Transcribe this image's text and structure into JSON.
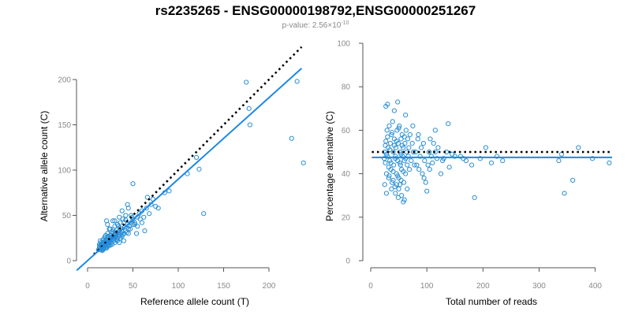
{
  "title": "rs2235265 - ENSG00000198792,ENSG00000251267",
  "subtitle": {
    "prefix": "p-value: 2.56×10",
    "exponent": "-10"
  },
  "colors": {
    "points": "#2a8fd4",
    "fit": "#1e88e5",
    "reference": "#000000"
  },
  "chart_data": [
    {
      "type": "scatter",
      "name": "allele-counts",
      "xlabel": "Reference allele count (T)",
      "ylabel": "Alternative allele count (C)",
      "xlim": [
        0,
        240
      ],
      "ylim": [
        0,
        240
      ],
      "xticks": [
        0,
        50,
        100,
        150,
        200
      ],
      "yticks": [
        0,
        50,
        100,
        150,
        200
      ],
      "reference_line": {
        "style": "dotted",
        "slope": 1.0,
        "intercept": 0
      },
      "fit_line": {
        "style": "solid",
        "slope": 0.9,
        "intercept": 0
      },
      "points": [
        [
          14,
          14
        ],
        [
          15,
          12
        ],
        [
          16,
          15
        ],
        [
          17,
          13
        ],
        [
          18,
          16
        ],
        [
          15,
          18
        ],
        [
          16,
          14
        ],
        [
          18,
          18
        ],
        [
          19,
          15
        ],
        [
          20,
          17
        ],
        [
          17,
          20
        ],
        [
          19,
          19
        ],
        [
          21,
          16
        ],
        [
          22,
          18
        ],
        [
          20,
          22
        ],
        [
          17,
          12
        ],
        [
          15,
          16
        ],
        [
          16,
          19
        ],
        [
          18,
          13
        ],
        [
          21,
          20
        ],
        [
          23,
          16
        ],
        [
          22,
          22
        ],
        [
          24,
          18
        ],
        [
          20,
          14
        ],
        [
          19,
          21
        ],
        [
          16,
          11
        ],
        [
          14,
          17
        ],
        [
          22,
          20
        ],
        [
          25,
          17
        ],
        [
          23,
          21
        ],
        [
          17,
          17
        ],
        [
          19,
          17
        ],
        [
          21,
          14
        ],
        [
          13,
          15
        ],
        [
          15,
          14
        ],
        [
          18,
          20
        ],
        [
          20,
          19
        ],
        [
          12,
          12
        ],
        [
          24,
          22
        ],
        [
          16,
          17
        ],
        [
          25,
          25
        ],
        [
          24,
          20
        ],
        [
          26,
          22
        ],
        [
          28,
          24
        ],
        [
          30,
          20
        ],
        [
          22,
          26
        ],
        [
          27,
          18
        ],
        [
          29,
          26
        ],
        [
          31,
          23
        ],
        [
          33,
          25
        ],
        [
          26,
          28
        ],
        [
          32,
          28
        ],
        [
          35,
          27
        ],
        [
          28,
          30
        ],
        [
          30,
          26
        ],
        [
          34,
          31
        ],
        [
          36,
          25
        ],
        [
          25,
          28
        ],
        [
          38,
          27
        ],
        [
          29,
          22
        ],
        [
          33,
          22
        ],
        [
          37,
          30
        ],
        [
          27,
          32
        ],
        [
          31,
          29
        ],
        [
          35,
          33
        ],
        [
          24,
          24
        ],
        [
          39,
          29
        ],
        [
          26,
          20
        ],
        [
          40,
          30
        ],
        [
          30,
          32
        ],
        [
          32,
          34
        ],
        [
          42,
          33
        ],
        [
          36,
          36
        ],
        [
          28,
          34
        ],
        [
          45,
          35
        ],
        [
          38,
          32
        ],
        [
          41,
          37
        ],
        [
          34,
          38
        ],
        [
          43,
          31
        ],
        [
          30,
          28
        ],
        [
          46,
          38
        ],
        [
          48,
          42
        ],
        [
          44,
          40
        ],
        [
          50,
          45
        ],
        [
          47,
          35
        ],
        [
          42,
          45
        ],
        [
          49,
          48
        ],
        [
          52,
          40
        ],
        [
          40,
          42
        ],
        [
          45,
          30
        ],
        [
          20,
          23
        ],
        [
          23,
          27
        ],
        [
          27,
          26
        ],
        [
          25,
          35
        ],
        [
          22,
          30
        ],
        [
          33,
          40
        ],
        [
          30,
          38
        ],
        [
          28,
          44
        ],
        [
          36,
          42
        ],
        [
          39,
          46
        ],
        [
          48,
          50
        ],
        [
          55,
          48
        ],
        [
          52,
          42
        ],
        [
          57,
          52
        ],
        [
          60,
          55
        ],
        [
          54,
          30
        ],
        [
          63,
          33
        ],
        [
          62,
          48
        ],
        [
          65,
          58
        ],
        [
          70,
          62
        ],
        [
          68,
          52
        ],
        [
          75,
          60
        ],
        [
          78,
          58
        ],
        [
          85,
          75
        ],
        [
          90,
          77
        ],
        [
          72,
          68
        ],
        [
          66,
          70
        ],
        [
          58,
          46
        ],
        [
          50,
          85
        ],
        [
          44,
          62
        ],
        [
          24,
          35
        ],
        [
          20,
          28
        ],
        [
          18,
          24
        ],
        [
          35,
          48
        ],
        [
          30,
          44
        ],
        [
          38,
          55
        ],
        [
          22,
          40
        ],
        [
          21,
          44
        ],
        [
          42,
          50
        ],
        [
          45,
          58
        ],
        [
          15,
          20
        ],
        [
          14,
          22
        ],
        [
          13,
          18
        ],
        [
          17,
          23
        ],
        [
          19,
          26
        ],
        [
          50,
          40
        ],
        [
          55,
          38
        ],
        [
          60,
          42
        ],
        [
          35,
          20
        ],
        [
          40,
          22
        ],
        [
          110,
          96
        ],
        [
          120,
          114
        ],
        [
          123,
          101
        ],
        [
          128,
          52
        ],
        [
          175,
          197
        ],
        [
          178,
          168
        ],
        [
          179,
          150
        ],
        [
          225,
          135
        ],
        [
          231,
          198
        ],
        [
          238,
          108
        ]
      ]
    },
    {
      "type": "scatter",
      "name": "percentage-alternative",
      "xlabel": "Total number of reads",
      "ylabel": "Percentage alternative (C)",
      "xlim": [
        0,
        430
      ],
      "ylim": [
        0,
        100
      ],
      "xticks": [
        0,
        100,
        200,
        300,
        400
      ],
      "yticks": [
        0,
        20,
        40,
        60,
        80,
        100
      ],
      "reference_line": {
        "style": "dotted",
        "y": 50
      },
      "fit_line": {
        "style": "solid",
        "y": 47.5
      },
      "points": [
        [
          25,
          50
        ],
        [
          26,
          45
        ],
        [
          27,
          55
        ],
        [
          28,
          40
        ],
        [
          29,
          60
        ],
        [
          30,
          48
        ],
        [
          31,
          52
        ],
        [
          32,
          38
        ],
        [
          33,
          62
        ],
        [
          34,
          46
        ],
        [
          35,
          54
        ],
        [
          36,
          42
        ],
        [
          37,
          58
        ],
        [
          38,
          36
        ],
        [
          39,
          64
        ],
        [
          40,
          50
        ],
        [
          41,
          44
        ],
        [
          42,
          56
        ],
        [
          43,
          34
        ],
        [
          44,
          48
        ],
        [
          45,
          52
        ],
        [
          46,
          40
        ],
        [
          47,
          60
        ],
        [
          48,
          46
        ],
        [
          49,
          54
        ],
        [
          50,
          38
        ],
        [
          51,
          62
        ],
        [
          52,
          50
        ],
        [
          53,
          44
        ],
        [
          54,
          56
        ],
        [
          55,
          42
        ],
        [
          56,
          58
        ],
        [
          57,
          48
        ],
        [
          58,
          52
        ],
        [
          59,
          36
        ],
        [
          60,
          46
        ],
        [
          61,
          54
        ],
        [
          62,
          40
        ],
        [
          63,
          60
        ],
        [
          64,
          50
        ],
        [
          65,
          44
        ],
        [
          66,
          56
        ],
        [
          67,
          48
        ],
        [
          68,
          52
        ],
        [
          69,
          42
        ],
        [
          70,
          58
        ],
        [
          72,
          46
        ],
        [
          74,
          54
        ],
        [
          76,
          50
        ],
        [
          78,
          44
        ],
        [
          24,
          47
        ],
        [
          26,
          53
        ],
        [
          28,
          49
        ],
        [
          30,
          57
        ],
        [
          32,
          43
        ],
        [
          34,
          51
        ],
        [
          36,
          45
        ],
        [
          38,
          59
        ],
        [
          40,
          41
        ],
        [
          42,
          53
        ],
        [
          44,
          47
        ],
        [
          46,
          55
        ],
        [
          48,
          39
        ],
        [
          50,
          61
        ],
        [
          52,
          45
        ],
        [
          54,
          49
        ],
        [
          56,
          53
        ],
        [
          58,
          41
        ],
        [
          60,
          57
        ],
        [
          62,
          47
        ],
        [
          27,
          71
        ],
        [
          30,
          72
        ],
        [
          48,
          73
        ],
        [
          42,
          69
        ],
        [
          62,
          67
        ],
        [
          65,
          33
        ],
        [
          55,
          30
        ],
        [
          58,
          27
        ],
        [
          60,
          28
        ],
        [
          52,
          35
        ],
        [
          25,
          35
        ],
        [
          28,
          31
        ],
        [
          33,
          39
        ],
        [
          37,
          33
        ],
        [
          40,
          37
        ],
        [
          44,
          31
        ],
        [
          46,
          35
        ],
        [
          50,
          33
        ],
        [
          54,
          37
        ],
        [
          49,
          29
        ],
        [
          80,
          50
        ],
        [
          82,
          44
        ],
        [
          84,
          56
        ],
        [
          86,
          42
        ],
        [
          88,
          48
        ],
        [
          90,
          52
        ],
        [
          92,
          40
        ],
        [
          94,
          54
        ],
        [
          96,
          46
        ],
        [
          98,
          36
        ],
        [
          100,
          32
        ],
        [
          102,
          44
        ],
        [
          104,
          50
        ],
        [
          106,
          56
        ],
        [
          108,
          48
        ],
        [
          110,
          45
        ],
        [
          112,
          54
        ],
        [
          115,
          50
        ],
        [
          118,
          47
        ],
        [
          120,
          52
        ],
        [
          125,
          40
        ],
        [
          130,
          47
        ],
        [
          135,
          50
        ],
        [
          138,
          63
        ],
        [
          140,
          43
        ],
        [
          145,
          49
        ],
        [
          150,
          48
        ],
        [
          160,
          48
        ],
        [
          165,
          47
        ],
        [
          170,
          46
        ],
        [
          180,
          44
        ],
        [
          185,
          29
        ],
        [
          195,
          47
        ],
        [
          205,
          52
        ],
        [
          215,
          45
        ],
        [
          225,
          48
        ],
        [
          235,
          46
        ],
        [
          335,
          46
        ],
        [
          340,
          49
        ],
        [
          345,
          31
        ],
        [
          360,
          37
        ],
        [
          370,
          52
        ],
        [
          395,
          47
        ],
        [
          425,
          45
        ],
        [
          75,
          62
        ],
        [
          85,
          58
        ],
        [
          95,
          38
        ],
        [
          105,
          42
        ],
        [
          115,
          60
        ],
        [
          128,
          46
        ]
      ]
    }
  ]
}
